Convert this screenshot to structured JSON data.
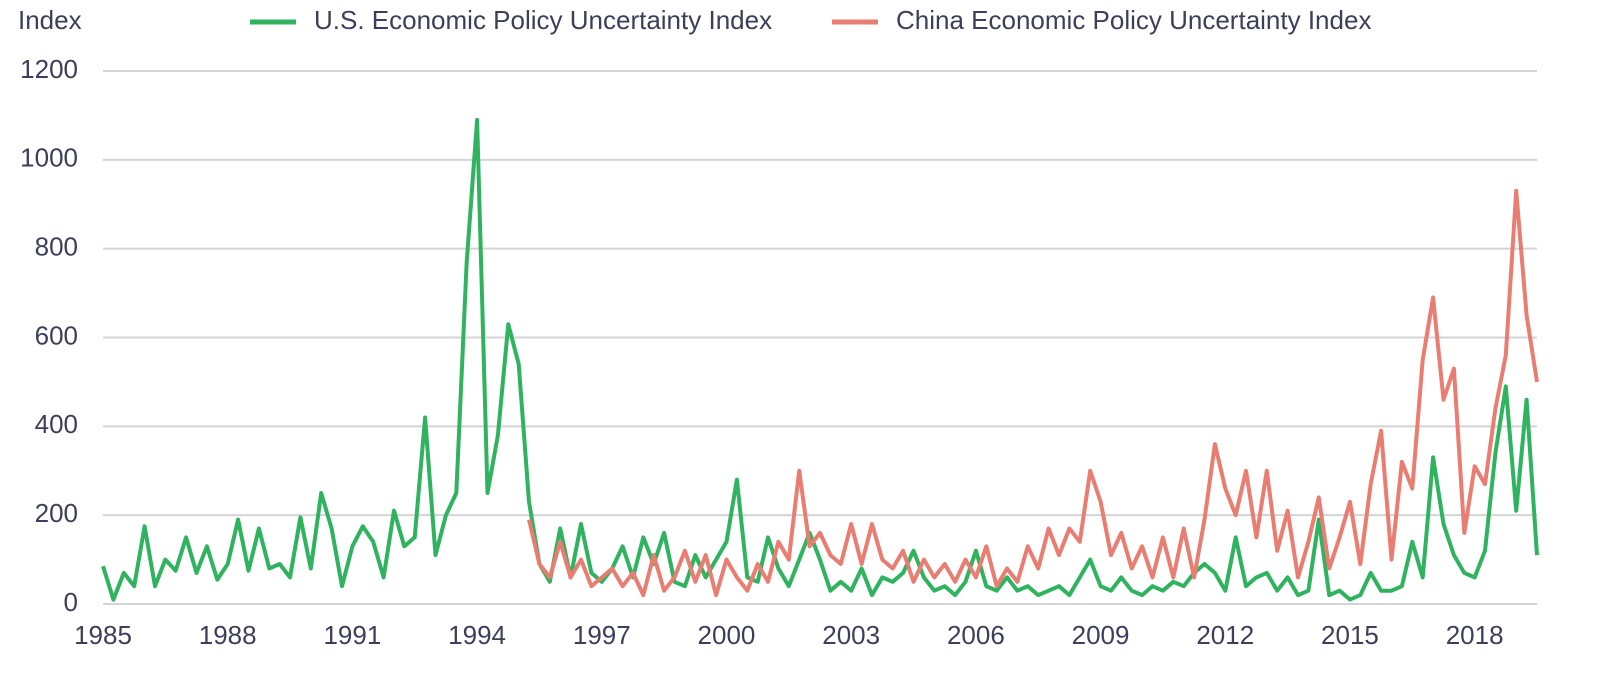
{
  "chart_data": {
    "type": "line",
    "y_label": "Index",
    "x": [
      1985,
      1985.25,
      1985.5,
      1985.75,
      1986,
      1986.25,
      1986.5,
      1986.75,
      1987,
      1987.25,
      1987.5,
      1987.75,
      1988,
      1988.25,
      1988.5,
      1988.75,
      1989,
      1989.25,
      1989.5,
      1989.75,
      1990,
      1990.25,
      1990.5,
      1990.75,
      1991,
      1991.25,
      1991.5,
      1991.75,
      1992,
      1992.25,
      1992.5,
      1992.75,
      1993,
      1993.25,
      1993.5,
      1993.75,
      1994,
      1994.25,
      1994.5,
      1994.75,
      1995,
      1995.25,
      1995.5,
      1995.75,
      1996,
      1996.25,
      1996.5,
      1996.75,
      1997,
      1997.25,
      1997.5,
      1997.75,
      1998,
      1998.25,
      1998.5,
      1998.75,
      1999,
      1999.25,
      1999.5,
      1999.75,
      2000,
      2000.25,
      2000.5,
      2000.75,
      2001,
      2001.25,
      2001.5,
      2001.75,
      2002,
      2002.25,
      2002.5,
      2002.75,
      2003,
      2003.25,
      2003.5,
      2003.75,
      2004,
      2004.25,
      2004.5,
      2004.75,
      2005,
      2005.25,
      2005.5,
      2005.75,
      2006,
      2006.25,
      2006.5,
      2006.75,
      2007,
      2007.25,
      2007.5,
      2007.75,
      2008,
      2008.25,
      2008.5,
      2008.75,
      2009,
      2009.25,
      2009.5,
      2009.75,
      2010,
      2010.25,
      2010.5,
      2010.75,
      2011,
      2011.25,
      2011.5,
      2011.75,
      2012,
      2012.25,
      2012.5,
      2012.75,
      2013,
      2013.25,
      2013.5,
      2013.75,
      2014,
      2014.25,
      2014.5,
      2014.75,
      2015,
      2015.25,
      2015.5,
      2015.75,
      2016,
      2016.25,
      2016.5,
      2016.75,
      2017,
      2017.25,
      2017.5,
      2017.75,
      2018,
      2018.25,
      2018.5,
      2018.75,
      2019,
      2019.25,
      2019.5
    ],
    "series": [
      {
        "name": "U.S. Economic Policy Uncertainty Index",
        "color": "#2fb35f",
        "values": [
          85,
          10,
          70,
          40,
          175,
          40,
          100,
          75,
          150,
          70,
          130,
          55,
          90,
          190,
          75,
          170,
          80,
          90,
          60,
          195,
          80,
          250,
          170,
          40,
          130,
          175,
          140,
          60,
          210,
          130,
          150,
          420,
          110,
          200,
          250,
          770,
          1090,
          250,
          380,
          630,
          540,
          230,
          90,
          50,
          170,
          60,
          180,
          70,
          50,
          80,
          130,
          60,
          150,
          90,
          160,
          50,
          40,
          110,
          60,
          100,
          140,
          280,
          60,
          50,
          150,
          80,
          40,
          100,
          160,
          100,
          30,
          50,
          30,
          80,
          20,
          60,
          50,
          70,
          120,
          60,
          30,
          40,
          20,
          50,
          120,
          40,
          30,
          60,
          30,
          40,
          20,
          30,
          40,
          20,
          60,
          100,
          40,
          30,
          60,
          30,
          20,
          40,
          30,
          50,
          40,
          70,
          90,
          70,
          30,
          150,
          40,
          60,
          70,
          30,
          60,
          20,
          30,
          190,
          20,
          30,
          10,
          20,
          70,
          30,
          30,
          40,
          140,
          60,
          330,
          180,
          110,
          70,
          60,
          120,
          340,
          490,
          210,
          460,
          110
        ]
      },
      {
        "name": "China Economic Policy Uncertainty Index",
        "color": "#e97d72",
        "values": [
          null,
          null,
          null,
          null,
          null,
          null,
          null,
          null,
          null,
          null,
          null,
          null,
          null,
          null,
          null,
          null,
          null,
          null,
          null,
          null,
          null,
          null,
          null,
          null,
          null,
          null,
          null,
          null,
          null,
          null,
          null,
          null,
          null,
          null,
          null,
          null,
          null,
          null,
          null,
          null,
          null,
          190,
          90,
          60,
          140,
          60,
          100,
          40,
          60,
          80,
          40,
          70,
          20,
          110,
          30,
          60,
          120,
          50,
          110,
          20,
          100,
          60,
          30,
          90,
          50,
          140,
          100,
          300,
          130,
          160,
          110,
          90,
          180,
          90,
          180,
          100,
          80,
          120,
          50,
          100,
          60,
          90,
          50,
          100,
          60,
          130,
          40,
          80,
          50,
          130,
          80,
          170,
          110,
          170,
          140,
          300,
          230,
          110,
          160,
          80,
          130,
          60,
          150,
          60,
          170,
          60,
          190,
          360,
          260,
          200,
          300,
          150,
          300,
          120,
          210,
          60,
          140,
          240,
          80,
          150,
          230,
          90,
          270,
          390,
          100,
          320,
          260,
          550,
          690,
          460,
          530,
          160,
          310,
          270,
          440,
          560,
          930,
          650,
          500
        ]
      }
    ],
    "xlim": [
      1985,
      2019.5
    ],
    "xticks": [
      1985,
      1988,
      1991,
      1994,
      1997,
      2000,
      2003,
      2006,
      2009,
      2012,
      2015,
      2018
    ],
    "ylim": [
      0,
      1200
    ],
    "yticks": [
      0,
      200,
      400,
      600,
      800,
      1000,
      1200
    ],
    "grid": true
  }
}
